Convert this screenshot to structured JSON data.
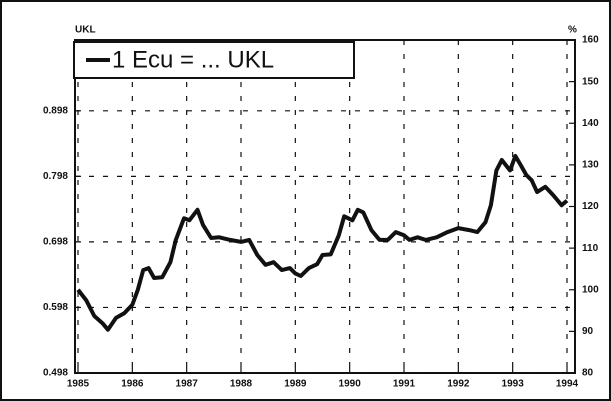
{
  "chart_data": {
    "type": "line",
    "y_label": "UKL",
    "y2_label": "%",
    "legend": "top-left",
    "grid": true,
    "xlim": [
      1985,
      1994
    ],
    "xticks": [
      1985,
      1986,
      1987,
      1988,
      1989,
      1990,
      1991,
      1992,
      1993,
      1994
    ],
    "ylim": [
      0.498,
      1.006
    ],
    "yticks": [
      0.498,
      0.598,
      0.698,
      0.798,
      0.898
    ],
    "y2lim": [
      80,
      160
    ],
    "y2ticks": [
      80,
      90,
      100,
      110,
      120,
      130,
      140,
      150,
      160
    ],
    "x": [
      1985.0,
      1985.15,
      1985.3,
      1985.45,
      1985.55,
      1985.7,
      1985.85,
      1986.0,
      1986.1,
      1986.2,
      1986.3,
      1986.4,
      1986.55,
      1986.7,
      1986.8,
      1986.95,
      1987.05,
      1987.2,
      1987.3,
      1987.45,
      1987.6,
      1987.8,
      1988.0,
      1988.15,
      1988.3,
      1988.45,
      1988.6,
      1988.75,
      1988.9,
      1989.0,
      1989.1,
      1989.25,
      1989.4,
      1989.5,
      1989.65,
      1989.8,
      1989.9,
      1990.05,
      1990.15,
      1990.25,
      1990.4,
      1990.55,
      1990.7,
      1990.85,
      1991.0,
      1991.1,
      1991.25,
      1991.4,
      1991.6,
      1991.8,
      1992.0,
      1992.2,
      1992.35,
      1992.5,
      1992.6,
      1992.7,
      1992.8,
      1992.95,
      1993.05,
      1993.15,
      1993.25,
      1993.35,
      1993.45,
      1993.6,
      1993.75,
      1993.9,
      1994.0
    ],
    "series": [
      {
        "name": "1 Ecu = ... UKL",
        "color": "#111111",
        "values": [
          0.625,
          0.609,
          0.585,
          0.574,
          0.564,
          0.582,
          0.589,
          0.602,
          0.625,
          0.655,
          0.658,
          0.643,
          0.644,
          0.667,
          0.701,
          0.734,
          0.731,
          0.747,
          0.724,
          0.704,
          0.705,
          0.701,
          0.698,
          0.701,
          0.678,
          0.663,
          0.667,
          0.655,
          0.658,
          0.65,
          0.646,
          0.658,
          0.664,
          0.678,
          0.679,
          0.708,
          0.737,
          0.731,
          0.747,
          0.743,
          0.716,
          0.701,
          0.701,
          0.713,
          0.708,
          0.701,
          0.705,
          0.701,
          0.705,
          0.713,
          0.719,
          0.716,
          0.713,
          0.728,
          0.754,
          0.807,
          0.823,
          0.807,
          0.829,
          0.815,
          0.8,
          0.792,
          0.774,
          0.782,
          0.769,
          0.754,
          0.761
        ]
      }
    ]
  }
}
